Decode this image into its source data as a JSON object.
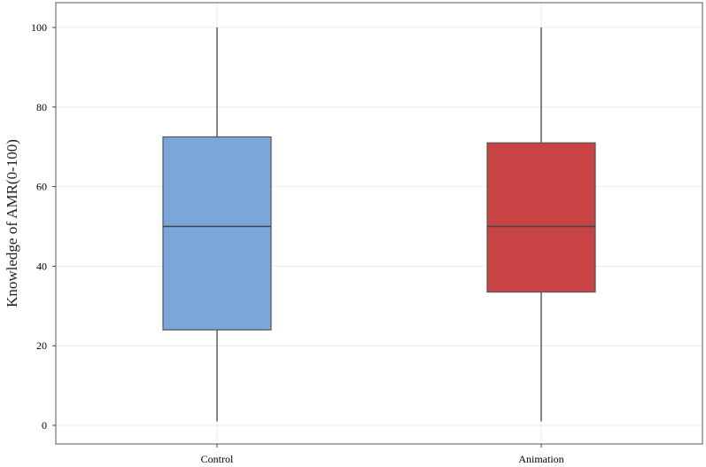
{
  "chart_data": {
    "type": "box",
    "title": "",
    "xlabel": "",
    "ylabel": "Knowledge of AMR(0-100)",
    "ylim": [
      0,
      100
    ],
    "yticks": [
      0,
      20,
      40,
      60,
      80,
      100
    ],
    "grid": true,
    "categories": [
      "Control",
      "Animation"
    ],
    "boxes": [
      {
        "name": "Control",
        "min": 1,
        "q1": 24,
        "median": 50,
        "q3": 72.5,
        "max": 100,
        "color": "#7aa6db"
      },
      {
        "name": "Animation",
        "min": 1,
        "q1": 33.5,
        "median": 50,
        "q3": 71,
        "max": 100,
        "color": "#c84444"
      }
    ]
  }
}
